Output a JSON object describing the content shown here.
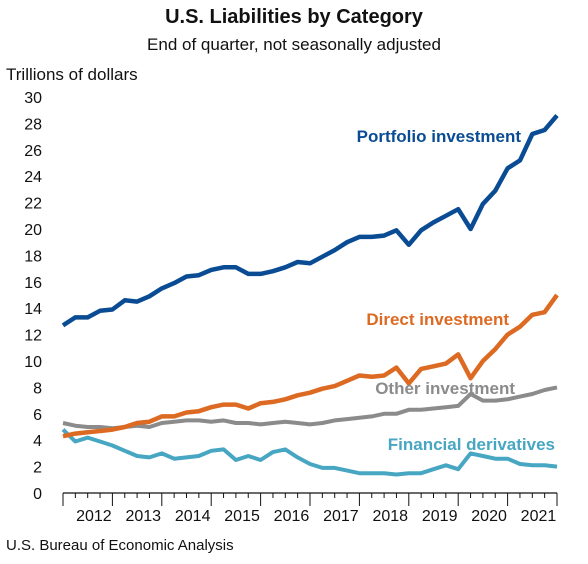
{
  "chart_data": {
    "type": "line",
    "title": "U.S. Liabilities by Category",
    "subtitle": "End of quarter, not seasonally adjusted",
    "ylabel": "Trillions of dollars",
    "xlabel": "",
    "ylim": [
      0,
      30
    ],
    "yticks": [
      0,
      2,
      4,
      6,
      8,
      10,
      12,
      14,
      16,
      18,
      20,
      22,
      24,
      26,
      28,
      30
    ],
    "x": [
      "2011Q4",
      "2012Q1",
      "2012Q2",
      "2012Q3",
      "2012Q4",
      "2013Q1",
      "2013Q2",
      "2013Q3",
      "2013Q4",
      "2014Q1",
      "2014Q2",
      "2014Q3",
      "2014Q4",
      "2015Q1",
      "2015Q2",
      "2015Q3",
      "2015Q4",
      "2016Q1",
      "2016Q2",
      "2016Q3",
      "2016Q4",
      "2017Q1",
      "2017Q2",
      "2017Q3",
      "2017Q4",
      "2018Q1",
      "2018Q2",
      "2018Q3",
      "2018Q4",
      "2019Q1",
      "2019Q2",
      "2019Q3",
      "2019Q4",
      "2020Q1",
      "2020Q2",
      "2020Q3",
      "2020Q4",
      "2021Q1",
      "2021Q2",
      "2021Q3",
      "2021Q4"
    ],
    "xtick_labels": [
      "2012",
      "2013",
      "2014",
      "2015",
      "2016",
      "2017",
      "2018",
      "2019",
      "2020",
      "2021"
    ],
    "grid": false,
    "series": [
      {
        "name": "Portfolio investment",
        "color": "#0a4c94",
        "values": [
          12.7,
          13.3,
          13.3,
          13.8,
          13.9,
          14.6,
          14.5,
          14.9,
          15.5,
          15.9,
          16.4,
          16.5,
          16.9,
          17.1,
          17.1,
          16.6,
          16.6,
          16.8,
          17.1,
          17.5,
          17.4,
          17.9,
          18.4,
          19.0,
          19.4,
          19.4,
          19.5,
          19.9,
          18.8,
          19.9,
          20.5,
          21.0,
          21.5,
          20.0,
          21.9,
          22.9,
          24.6,
          25.2,
          27.2,
          27.5,
          28.6
        ]
      },
      {
        "name": "Direct investment",
        "color": "#dd6a23",
        "values": [
          4.3,
          4.5,
          4.6,
          4.7,
          4.8,
          5.0,
          5.3,
          5.4,
          5.8,
          5.8,
          6.1,
          6.2,
          6.5,
          6.7,
          6.7,
          6.4,
          6.8,
          6.9,
          7.1,
          7.4,
          7.6,
          7.9,
          8.1,
          8.5,
          8.9,
          8.8,
          8.9,
          9.5,
          8.3,
          9.4,
          9.6,
          9.8,
          10.5,
          8.7,
          10.0,
          10.9,
          12.0,
          12.6,
          13.5,
          13.7,
          15.0
        ]
      },
      {
        "name": "Other investment",
        "color": "#8b8b8b",
        "values": [
          5.3,
          5.1,
          5.0,
          5.0,
          4.9,
          5.0,
          5.1,
          5.0,
          5.3,
          5.4,
          5.5,
          5.5,
          5.4,
          5.5,
          5.3,
          5.3,
          5.2,
          5.3,
          5.4,
          5.3,
          5.2,
          5.3,
          5.5,
          5.6,
          5.7,
          5.8,
          6.0,
          6.0,
          6.3,
          6.3,
          6.4,
          6.5,
          6.6,
          7.5,
          7.0,
          7.0,
          7.1,
          7.3,
          7.5,
          7.8,
          8.0
        ]
      },
      {
        "name": "Financial derivatives",
        "color": "#47a6c2",
        "values": [
          4.8,
          3.9,
          4.2,
          3.9,
          3.6,
          3.2,
          2.8,
          2.7,
          3.0,
          2.6,
          2.7,
          2.8,
          3.2,
          3.3,
          2.5,
          2.8,
          2.5,
          3.1,
          3.3,
          2.7,
          2.2,
          1.9,
          1.9,
          1.7,
          1.5,
          1.5,
          1.5,
          1.4,
          1.5,
          1.5,
          1.8,
          2.1,
          1.8,
          3.0,
          2.8,
          2.6,
          2.6,
          2.2,
          2.1,
          2.1,
          2.0
        ]
      }
    ]
  },
  "source": "U.S. Bureau of Economic Analysis"
}
